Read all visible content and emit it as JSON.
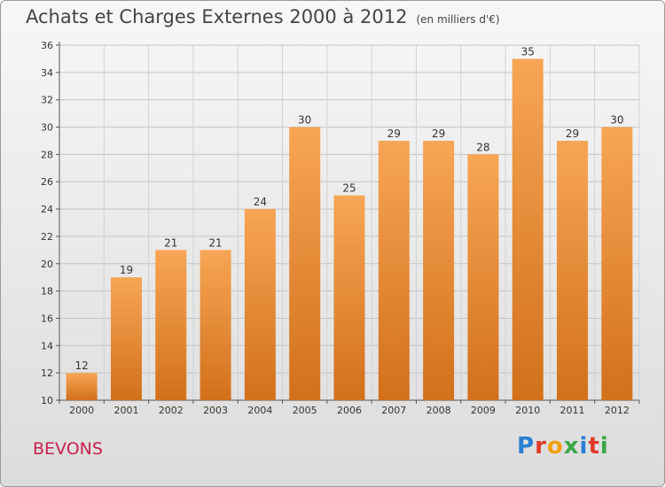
{
  "header": {
    "title": "Achats et Charges Externes 2000 à 2012",
    "unit": "(en milliers d'€)"
  },
  "commune": "BEVONS",
  "logo": {
    "text": "Proxiti",
    "letter_colors": [
      "#2a7fd4",
      "#e03a2a",
      "#f2a010",
      "#3aa845",
      "#2a7fd4",
      "#e03a2a",
      "#3aa845"
    ]
  },
  "chart_data": {
    "type": "bar",
    "categories": [
      "2000",
      "2001",
      "2002",
      "2003",
      "2004",
      "2005",
      "2006",
      "2007",
      "2008",
      "2009",
      "2010",
      "2011",
      "2012"
    ],
    "values": [
      12,
      19,
      21,
      21,
      24,
      30,
      25,
      29,
      29,
      28,
      35,
      29,
      30
    ],
    "ylim": [
      10,
      36
    ],
    "yticks": [
      10,
      12,
      14,
      16,
      18,
      20,
      22,
      24,
      26,
      28,
      30,
      32,
      34,
      36
    ],
    "grid": true,
    "bar_color_top": "#f7a655",
    "bar_color_bottom": "#d2701b"
  }
}
